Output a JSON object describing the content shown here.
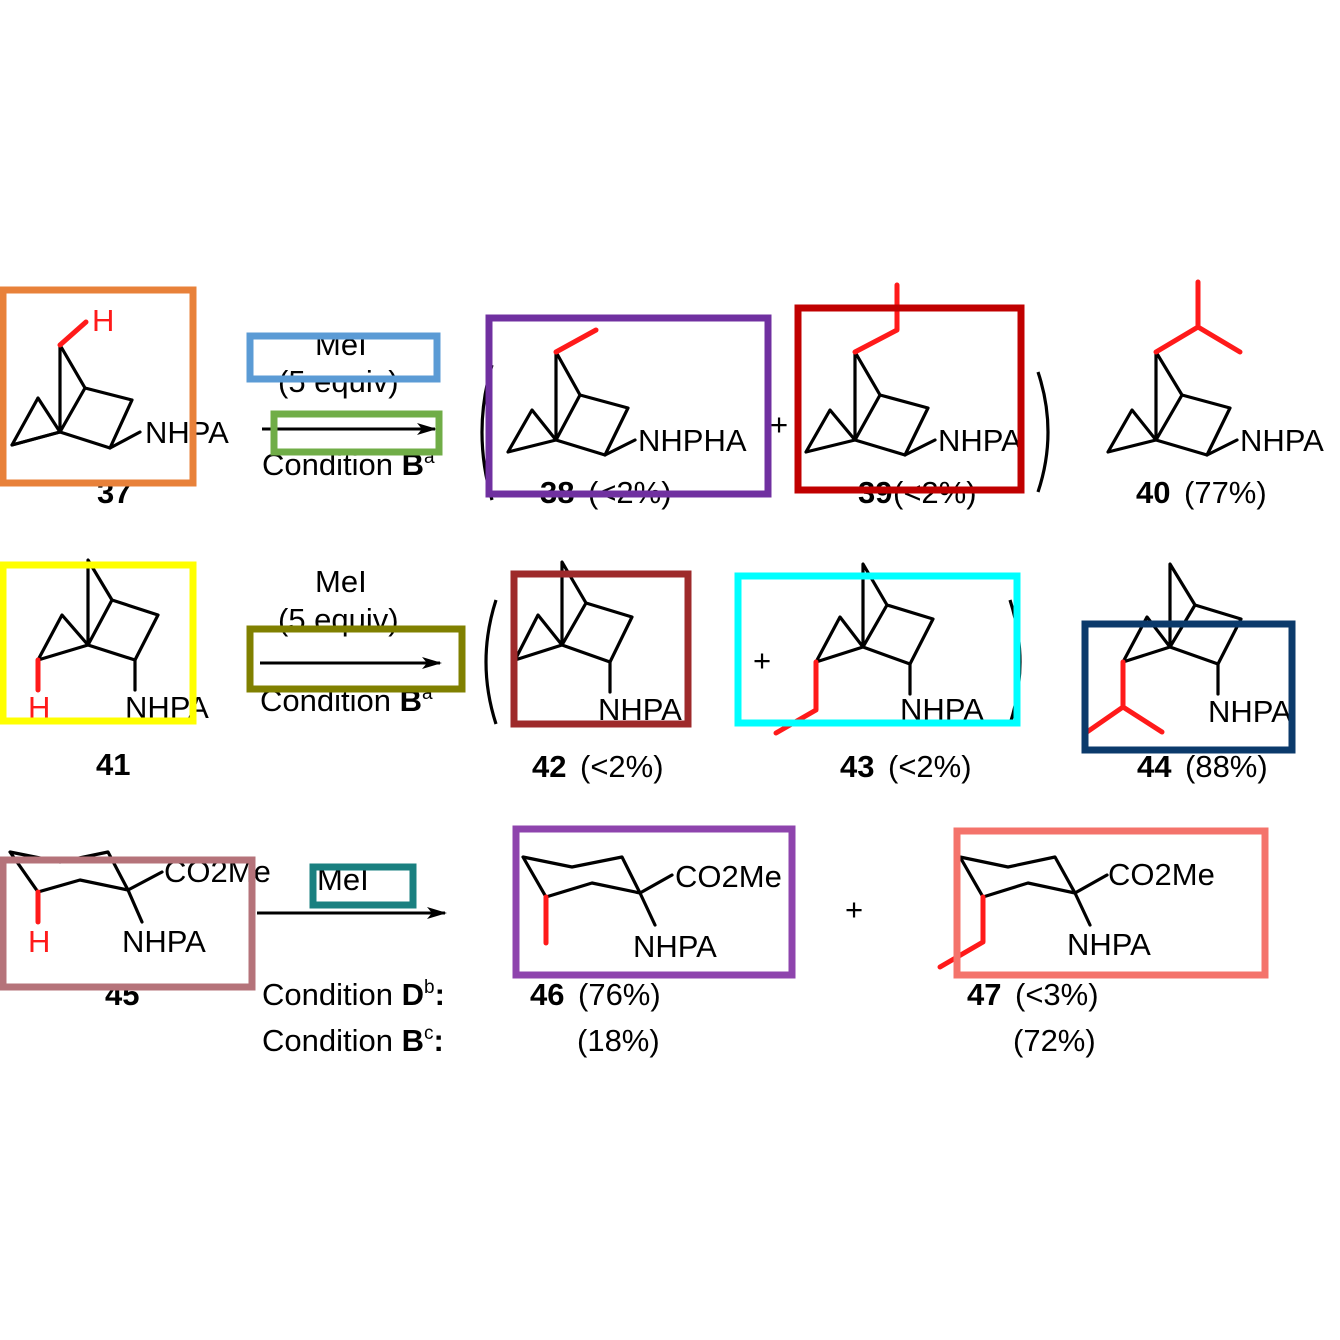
{
  "row1": {
    "sm_label": "37",
    "sm_h": "H",
    "sm_sub": "NHPA",
    "reagent": "MeI",
    "equiv": "(5 equiv)",
    "condition_text": "Condition ",
    "condition_letter": "B",
    "condition_sup": "a",
    "p1_label": "38",
    "p1_yield": "(<2%)",
    "p1_sub": "NHPHA",
    "plus": "+",
    "p2_label": "39",
    "p2_yield": "(<2%)",
    "p2_sub": "NHPA",
    "p3_label": "40",
    "p3_yield": "(77%)",
    "p3_sub": "NHPA"
  },
  "row2": {
    "sm_label": "41",
    "sm_h": "H",
    "sm_sub": "NHPA",
    "reagent": "MeI",
    "equiv": "(5 equiv)",
    "condition_text": "Condition ",
    "condition_letter": "B",
    "condition_sup": "a",
    "p1_label": "42",
    "p1_yield": "(<2%)",
    "p1_sub": "NHPA",
    "plus": "+",
    "p2_label": "43",
    "p2_yield": "(<2%)",
    "p2_sub": "NHPA",
    "p3_label": "44",
    "p3_yield": "(88%)",
    "p3_sub": "NHPA"
  },
  "row3": {
    "sm_label": "45",
    "sm_h": "H",
    "sm_ester": "CO2Me",
    "sm_sub": "NHPA",
    "reagent": "MeI",
    "plus": "+",
    "p1_label": "46",
    "p1_ester": "CO2Me",
    "p1_sub": "NHPA",
    "p2_label": "47",
    "p2_ester": "CO2Me",
    "p2_sub": "NHPA",
    "condD_text": "Condition ",
    "condD_letter": "D",
    "condD_sup": "b",
    "condD_p1_label": "46",
    "condD_p1_yield": "(76%)",
    "condD_p2_label": "47",
    "condD_p2_yield": "(<3%)",
    "condB_text": "Condition ",
    "condB_letter": "B",
    "condB_sup": "c",
    "condB_p1_yield": "(18%)",
    "condB_p2_yield": "(72%)",
    "colon": ":"
  },
  "colors": {
    "highlight": "#ff1a1a",
    "box_orange": "#e8813a",
    "box_blue": "#5b9bd5",
    "box_green": "#70ad47",
    "box_purple": "#7030a0",
    "box_darkred": "#c00000",
    "box_yellow": "#ffff00",
    "box_olive": "#808000",
    "box_brown": "#9e2a2b",
    "box_cyan": "#00ffff",
    "box_navy": "#0b3a6b",
    "box_mauve": "#b5737a",
    "box_teal": "#1a8080",
    "box_violet": "#8e44ad",
    "box_salmon": "#f4736b"
  }
}
